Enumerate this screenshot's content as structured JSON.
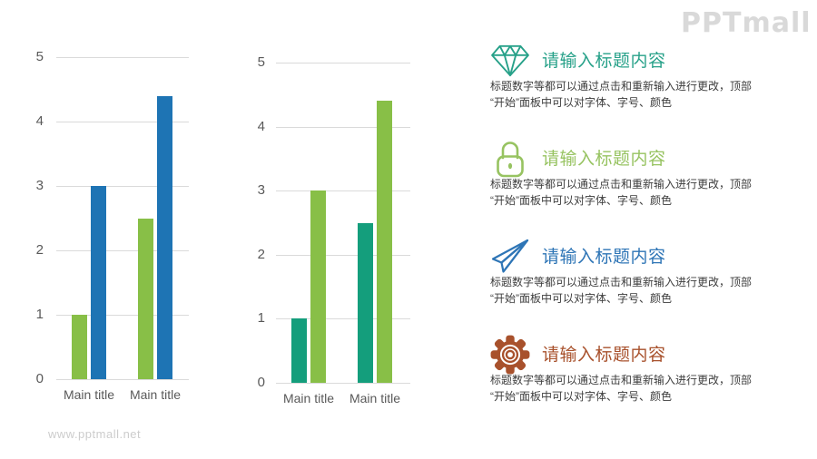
{
  "logo": {
    "text": "PPTmall"
  },
  "watermark": {
    "text": "www.pptmall.net"
  },
  "chart_data": [
    {
      "type": "bar",
      "title": "",
      "xlabel": "",
      "ylabel": "",
      "categories": [
        "Main title",
        "Main title"
      ],
      "series": [
        {
          "name": "series-green",
          "color": "#88BF47",
          "values": [
            1,
            2.5
          ]
        },
        {
          "name": "series-blue",
          "color": "#1E74B4",
          "values": [
            3,
            4.4
          ]
        }
      ],
      "ylim": [
        0,
        5
      ],
      "yticks": [
        0,
        1,
        2,
        3,
        4,
        5
      ],
      "grid": true,
      "legend_position": "none"
    },
    {
      "type": "bar",
      "title": "",
      "xlabel": "",
      "ylabel": "",
      "categories": [
        "Main title",
        "Main title"
      ],
      "series": [
        {
          "name": "series-teal",
          "color": "#149E7C",
          "values": [
            1,
            2.5
          ]
        },
        {
          "name": "series-light-green",
          "color": "#88BF47",
          "values": [
            3,
            4.4
          ]
        }
      ],
      "ylim": [
        0,
        5
      ],
      "yticks": [
        0,
        1,
        2,
        3,
        4,
        5
      ],
      "grid": true,
      "legend_position": "none"
    }
  ],
  "items": [
    {
      "icon": "diamond-icon",
      "accent_color": "#27A189",
      "title": "请输入标题内容",
      "body_lines": [
        "标题数字等都可以通过点击和重新输入进行更改，顶部",
        "“开始”面板中可以对字体、字号、颜色"
      ]
    },
    {
      "icon": "lock-icon",
      "accent_color": "#97C361",
      "title": "请输入标题内容",
      "body_lines": [
        "标题数字等都可以通过点击和重新输入进行更改，顶部",
        "“开始”面板中可以对字体、字号、颜色"
      ]
    },
    {
      "icon": "paper-plane-icon",
      "accent_color": "#2E75B6",
      "title": "请输入标题内容",
      "body_lines": [
        "标题数字等都可以通过点击和重新输入进行更改，顶部",
        "“开始”面板中可以对字体、字号、颜色"
      ]
    },
    {
      "icon": "gear-icon",
      "accent_color": "#A8512C",
      "title": "请输入标题内容",
      "body_lines": [
        "标题数字等都可以通过点击和重新输入进行更改，顶部",
        "“开始”面板中可以对字体、字号、颜色"
      ]
    }
  ],
  "colors": {
    "grid_line": "#dadada",
    "axis_text": "#595959",
    "body_text": "#3d3d3d",
    "logo_text": "#d9d9d9",
    "watermark_text": "#cccccc"
  }
}
